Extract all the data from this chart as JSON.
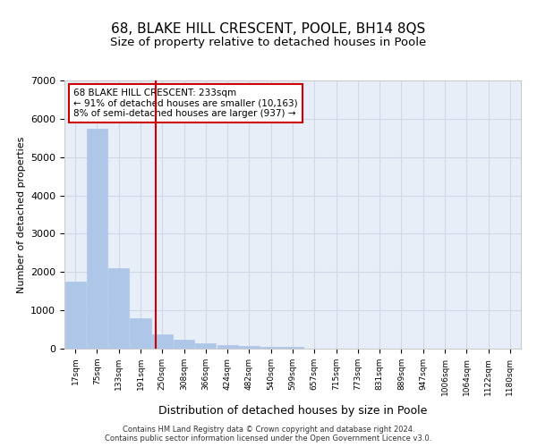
{
  "title1": "68, BLAKE HILL CRESCENT, POOLE, BH14 8QS",
  "title2": "Size of property relative to detached houses in Poole",
  "xlabel": "Distribution of detached houses by size in Poole",
  "ylabel": "Number of detached properties",
  "bin_labels": [
    "17sqm",
    "75sqm",
    "133sqm",
    "191sqm",
    "250sqm",
    "308sqm",
    "366sqm",
    "424sqm",
    "482sqm",
    "540sqm",
    "599sqm",
    "657sqm",
    "715sqm",
    "773sqm",
    "831sqm",
    "889sqm",
    "947sqm",
    "1006sqm",
    "1064sqm",
    "1122sqm",
    "1180sqm"
  ],
  "bar_values": [
    1750,
    5750,
    2100,
    800,
    375,
    225,
    150,
    100,
    75,
    50,
    50,
    0,
    0,
    0,
    0,
    0,
    0,
    0,
    0,
    0,
    0
  ],
  "bar_color": "#aec6e8",
  "bar_edge_color": "#aec6e8",
  "grid_color": "#d0d8e8",
  "background_color": "#e8eef8",
  "annotation_text": "68 BLAKE HILL CRESCENT: 233sqm\n← 91% of detached houses are smaller (10,163)\n8% of semi-detached houses are larger (937) →",
  "annotation_box_color": "#ffffff",
  "annotation_border_color": "#cc0000",
  "vline_color": "#cc0000",
  "ylim": [
    0,
    7000
  ],
  "yticks": [
    0,
    1000,
    2000,
    3000,
    4000,
    5000,
    6000,
    7000
  ],
  "footer_line1": "Contains HM Land Registry data © Crown copyright and database right 2024.",
  "footer_line2": "Contains public sector information licensed under the Open Government Licence v3.0."
}
